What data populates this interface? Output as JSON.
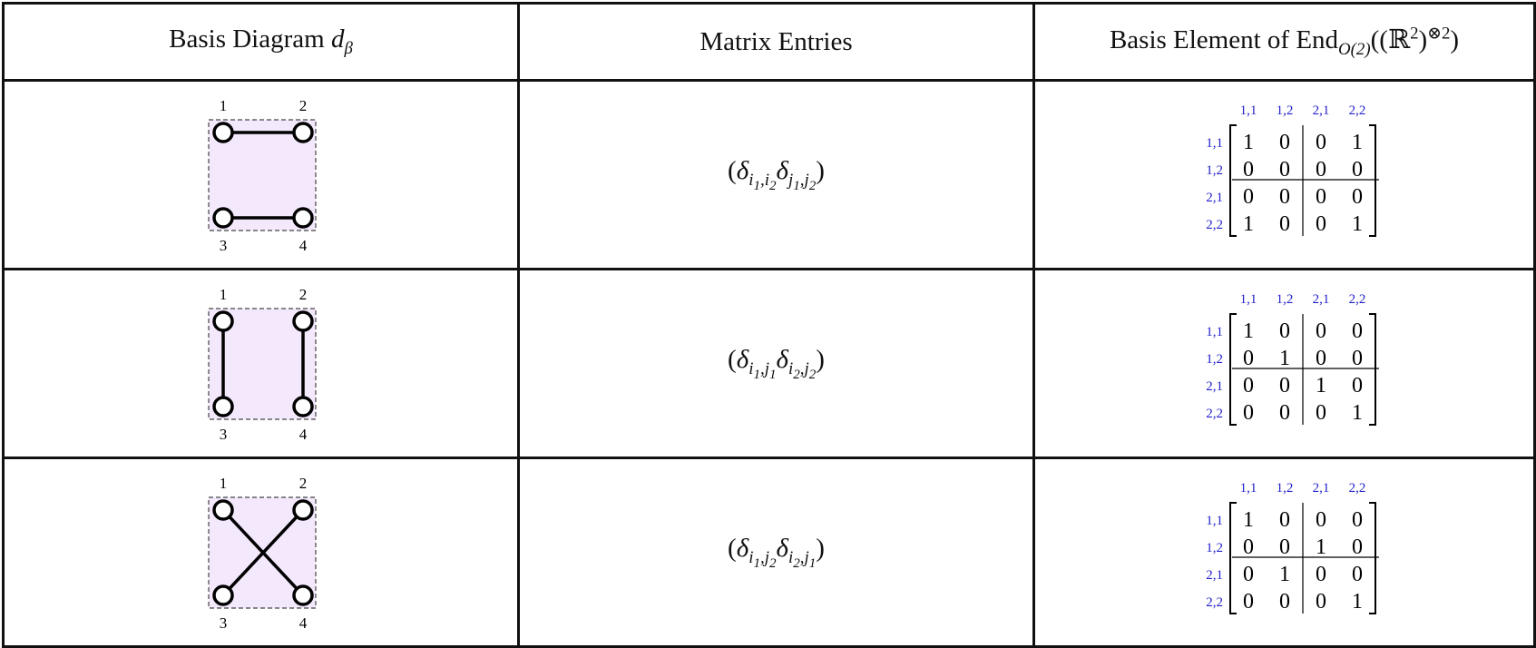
{
  "headers": {
    "col1": {
      "text": "Basis Diagram",
      "symbol": "d",
      "subscript": "β"
    },
    "col2": {
      "text": "Matrix Entries"
    },
    "col3": {
      "text": "Basis Element of",
      "operator": "End",
      "subscript": "O(2)",
      "argument": "((ℝ",
      "arg_sup": "2",
      "close": ")",
      "power": "⊗2",
      "end": ")"
    }
  },
  "node_labels": [
    "1",
    "2",
    "3",
    "4"
  ],
  "index_labels": [
    "1,1",
    "1,2",
    "2,1",
    "2,2"
  ],
  "colors": {
    "diagram_fill": "#f3e8fc",
    "index_label": "#2222cc",
    "border": "#111111"
  },
  "rows": [
    {
      "edges": [
        [
          1,
          2
        ],
        [
          3,
          4
        ]
      ],
      "entry": {
        "a": "i",
        "a1": "1",
        "b": "i",
        "b1": "2",
        "c": "j",
        "c1": "1",
        "d": "j",
        "d1": "2"
      },
      "matrix": [
        [
          1,
          0,
          0,
          1
        ],
        [
          0,
          0,
          0,
          0
        ],
        [
          0,
          0,
          0,
          0
        ],
        [
          1,
          0,
          0,
          1
        ]
      ]
    },
    {
      "edges": [
        [
          1,
          3
        ],
        [
          2,
          4
        ]
      ],
      "entry": {
        "a": "i",
        "a1": "1",
        "b": "j",
        "b1": "1",
        "c": "i",
        "c1": "2",
        "d": "j",
        "d1": "2"
      },
      "matrix": [
        [
          1,
          0,
          0,
          0
        ],
        [
          0,
          1,
          0,
          0
        ],
        [
          0,
          0,
          1,
          0
        ],
        [
          0,
          0,
          0,
          1
        ]
      ]
    },
    {
      "edges": [
        [
          1,
          4
        ],
        [
          2,
          3
        ]
      ],
      "entry": {
        "a": "i",
        "a1": "1",
        "b": "j",
        "b1": "2",
        "c": "i",
        "c1": "2",
        "d": "j",
        "d1": "1"
      },
      "matrix": [
        [
          1,
          0,
          0,
          0
        ],
        [
          0,
          0,
          1,
          0
        ],
        [
          0,
          1,
          0,
          0
        ],
        [
          0,
          0,
          0,
          1
        ]
      ]
    }
  ]
}
